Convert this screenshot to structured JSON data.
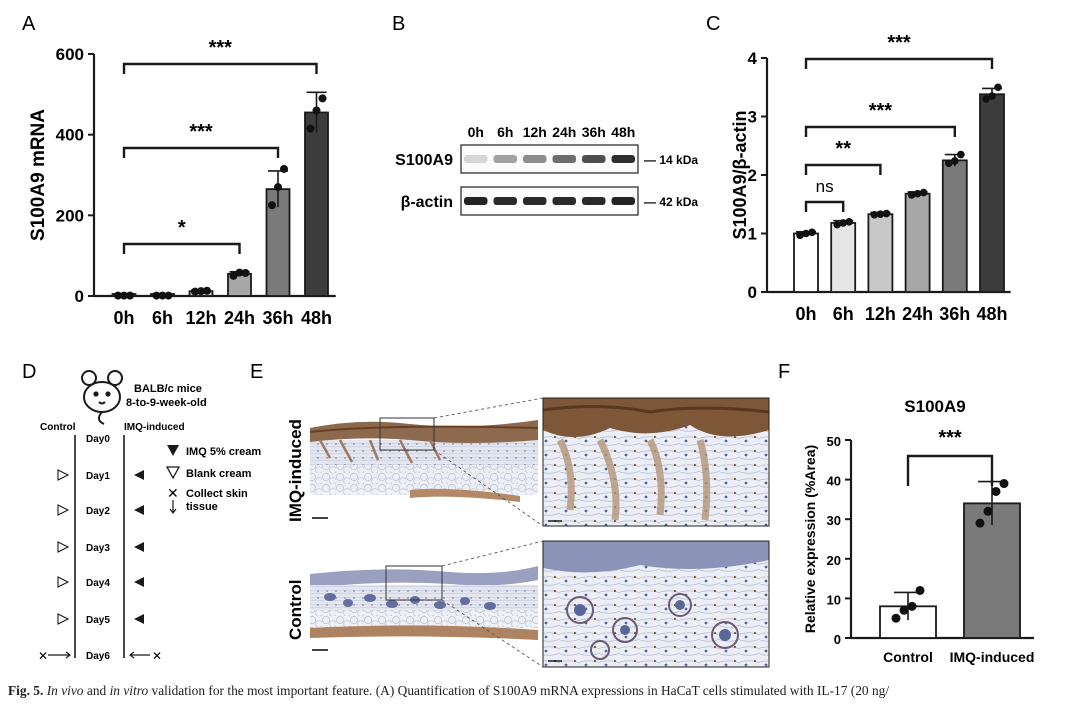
{
  "panel_letters": {
    "a": "A",
    "b": "B",
    "c": "C",
    "d": "D",
    "e": "E",
    "f": "F"
  },
  "chart_data": [
    {
      "panel": "A",
      "type": "bar",
      "title": "",
      "xlabel": "",
      "ylabel": "S100A9 mRNA",
      "categories": [
        "0h",
        "6h",
        "12h",
        "24h",
        "36h",
        "48h"
      ],
      "values": [
        1,
        1,
        12,
        55,
        265,
        455
      ],
      "errors": [
        1,
        1,
        2,
        5,
        45,
        50
      ],
      "points": [
        [
          1,
          1,
          1
        ],
        [
          1,
          1,
          1
        ],
        [
          11,
          12,
          13
        ],
        [
          50,
          58,
          57
        ],
        [
          225,
          270,
          315
        ],
        [
          415,
          460,
          490
        ]
      ],
      "ylim": [
        0,
        600
      ],
      "yticks": [
        0,
        200,
        400,
        600
      ],
      "colors": [
        "#ffffff",
        "#e6e6e6",
        "#c8c8c8",
        "#a7a7a7",
        "#7a7a7a",
        "#3c3c3c"
      ],
      "brackets": [
        {
          "from": 0,
          "to": 3,
          "label": "*"
        },
        {
          "from": 0,
          "to": 4,
          "label": "***"
        },
        {
          "from": 0,
          "to": 5,
          "label": "***"
        }
      ]
    },
    {
      "panel": "C",
      "type": "bar",
      "title": "",
      "xlabel": "",
      "ylabel": "S100A9/β-actin",
      "categories": [
        "0h",
        "6h",
        "12h",
        "24h",
        "36h",
        "48h"
      ],
      "values": [
        1.0,
        1.18,
        1.33,
        1.68,
        2.25,
        3.38
      ],
      "errors": [
        0.03,
        0.04,
        0.03,
        0.03,
        0.1,
        0.1
      ],
      "points": [
        [
          0.97,
          1.0,
          1.02
        ],
        [
          1.15,
          1.18,
          1.2
        ],
        [
          1.32,
          1.33,
          1.34
        ],
        [
          1.66,
          1.68,
          1.7
        ],
        [
          2.2,
          2.24,
          2.35
        ],
        [
          3.3,
          3.35,
          3.5
        ]
      ],
      "ylim": [
        0,
        4
      ],
      "yticks": [
        0,
        1,
        2,
        3,
        4
      ],
      "colors": [
        "#ffffff",
        "#e6e6e6",
        "#c8c8c8",
        "#a7a7a7",
        "#7a7a7a",
        "#3c3c3c"
      ],
      "brackets": [
        {
          "from": 0,
          "to": 1,
          "label": "ns"
        },
        {
          "from": 0,
          "to": 2,
          "label": "**"
        },
        {
          "from": 0,
          "to": 4,
          "label": "***"
        },
        {
          "from": 0,
          "to": 5,
          "label": "***"
        }
      ]
    },
    {
      "panel": "F",
      "type": "bar",
      "title": "S100A9",
      "xlabel": "",
      "ylabel": "Relative expression (%Area)",
      "categories": [
        "Control",
        "IMQ-induced"
      ],
      "values": [
        8,
        34
      ],
      "errors": [
        3.5,
        5.5
      ],
      "points": [
        [
          5,
          7,
          8,
          12
        ],
        [
          29,
          32,
          37,
          39
        ]
      ],
      "ylim": [
        0,
        50
      ],
      "yticks": [
        0,
        10,
        20,
        30,
        40,
        50
      ],
      "colors": [
        "#ffffff",
        "#7a7a7a"
      ],
      "brackets": [
        {
          "from": 0,
          "to": 1,
          "label": "***"
        }
      ]
    }
  ],
  "blot": {
    "timepoints": [
      "0h",
      "6h",
      "12h",
      "24h",
      "36h",
      "48h"
    ],
    "rows": [
      {
        "label": "S100A9",
        "kda": "— 14 kDa",
        "intensity": [
          0.1,
          0.35,
          0.45,
          0.6,
          0.75,
          0.9
        ]
      },
      {
        "label": "β-actin",
        "kda": "— 42 kDa",
        "intensity": [
          0.95,
          0.92,
          0.92,
          0.92,
          0.92,
          0.95
        ]
      }
    ]
  },
  "schematic": {
    "mouse_line1": "BALB/c mice",
    "mouse_line2": "8-to-9-week-old",
    "control_label": "Control",
    "imq_label": "IMQ-induced",
    "days": [
      "Day0",
      "Day1",
      "Day2",
      "Day3",
      "Day4",
      "Day5",
      "Day6"
    ],
    "legend_imq": "IMQ 5% cream",
    "legend_blank": "Blank cream",
    "legend_collect1": "Collect skin",
    "legend_collect2": "tissue"
  },
  "histology": {
    "row_top": "IMQ-induced",
    "row_bottom": "Control"
  },
  "caption": {
    "prefix": "Fig. 5.",
    "italic1": "In vivo",
    "mid": "and",
    "italic2": "in vitro",
    "rest": "validation for the most important feature. (A) Quantification of S100A9 mRNA expressions in HaCaT cells stimulated with IL-17 (20 ng/"
  }
}
